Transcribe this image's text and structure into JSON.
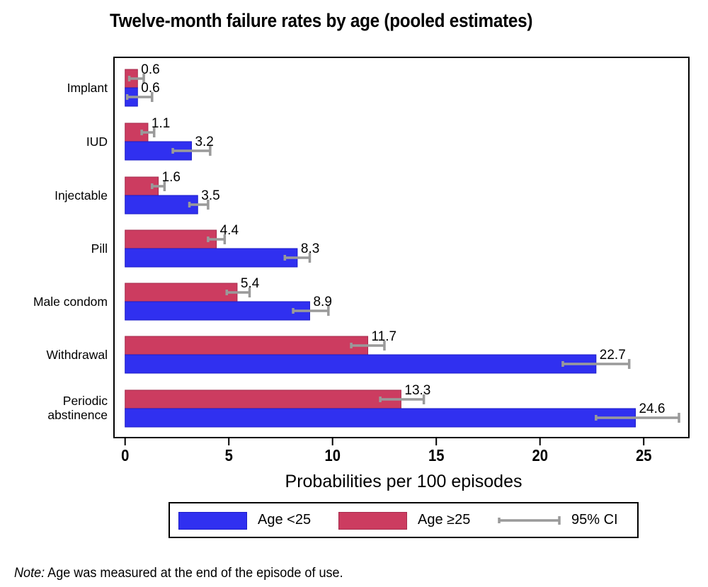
{
  "chart_data": {
    "type": "bar",
    "orientation": "horizontal",
    "title": "Twelve-month failure rates by age (pooled estimates)",
    "xlabel": "Probabilities per 100 episodes",
    "xlim": [
      0,
      27.2
    ],
    "xticks": [
      0,
      5,
      10,
      15,
      20,
      25
    ],
    "grid": false,
    "bar_label_decimals": 1,
    "categories": [
      "Implant",
      "IUD",
      "Injectable",
      "Pill",
      "Male condom",
      "Withdrawal",
      "Periodic abstinence"
    ],
    "series": [
      {
        "name": "Age <25",
        "position_in_group": "bottom",
        "fill": "#3030f0",
        "border": "#1c1cc8",
        "values": [
          0.6,
          3.2,
          3.5,
          8.3,
          8.9,
          22.7,
          24.6
        ],
        "ci_low": [
          0.1,
          2.3,
          3.1,
          7.7,
          8.1,
          21.1,
          22.7
        ],
        "ci_high": [
          1.3,
          4.1,
          4.0,
          8.9,
          9.8,
          24.3,
          26.7
        ]
      },
      {
        "name": "Age ≥25",
        "position_in_group": "top",
        "fill": "#cc3c60",
        "border": "#a62c4e",
        "values": [
          0.6,
          1.1,
          1.6,
          4.4,
          5.4,
          11.7,
          13.3
        ],
        "ci_low": [
          0.2,
          0.8,
          1.3,
          4.0,
          4.9,
          10.9,
          12.3
        ],
        "ci_high": [
          0.9,
          1.4,
          1.9,
          4.8,
          6.0,
          12.5,
          14.4
        ]
      }
    ],
    "colors": {
      "ci": "#9a9a9a",
      "frame": "#000000",
      "background": "#ffffff"
    },
    "legend_position": "bottom"
  },
  "legend": {
    "items": [
      {
        "label": "Age <25",
        "kind": "swatch",
        "series_index": 0
      },
      {
        "label": "Age ≥25",
        "kind": "swatch",
        "series_index": 1
      },
      {
        "label": "95% CI",
        "kind": "ci-line"
      }
    ]
  },
  "note": {
    "label": "Note:",
    "text": " Age was measured at the end of the episode of use."
  }
}
